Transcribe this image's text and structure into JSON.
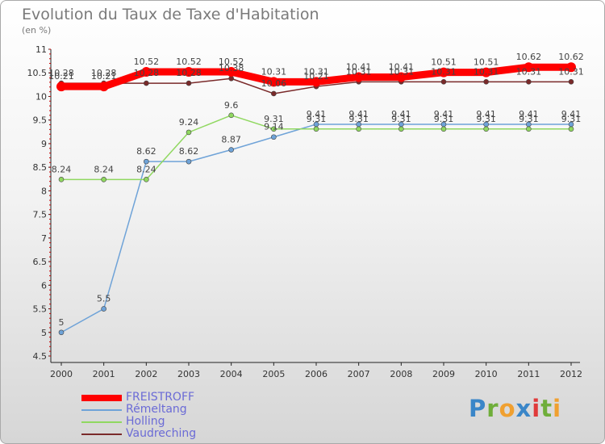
{
  "chart_data": {
    "type": "line",
    "title": "Evolution du Taux de Taxe d'Habitation",
    "subtitle": "(en %)",
    "x": [
      "2000",
      "2001",
      "2002",
      "2003",
      "2004",
      "2005",
      "2006",
      "2007",
      "2008",
      "2009",
      "2010",
      "2011",
      "2012"
    ],
    "ylim": [
      4.5,
      11
    ],
    "yticks": [
      "4.5",
      "5",
      "5.5",
      "6",
      "6.5",
      "7",
      "7.5",
      "8",
      "8.5",
      "9",
      "9.5",
      "10",
      "10.5",
      "11"
    ],
    "grid": false,
    "legend_position": "bottom-left",
    "series": [
      {
        "name": "FREISTROFF",
        "color": "#ff0000",
        "values": [
          10.21,
          10.21,
          10.52,
          10.52,
          10.52,
          10.31,
          10.31,
          10.41,
          10.41,
          10.51,
          10.51,
          10.62,
          10.62
        ],
        "labels": [
          "10.21",
          "10.21",
          "10.52",
          "10.52",
          "10.52",
          "10.31",
          "10.31",
          "10.41",
          "10.41",
          "10.51",
          "10.51",
          "10.62",
          "10.62"
        ]
      },
      {
        "name": "Rémeltang",
        "color": "#6fa3d8",
        "values": [
          5,
          5.5,
          8.62,
          8.62,
          8.87,
          9.14,
          9.41,
          9.41,
          9.41,
          9.41,
          9.41,
          9.41,
          9.41
        ],
        "labels": [
          "5",
          "5.5",
          "8.62",
          "8.62",
          "8.87",
          "9.14",
          "9.41",
          "9.41",
          "9.41",
          "9.41",
          "9.41",
          "9.41",
          "9.41"
        ]
      },
      {
        "name": "Holling",
        "color": "#90d860",
        "values": [
          8.24,
          8.24,
          8.24,
          9.24,
          9.6,
          9.31,
          9.31,
          9.31,
          9.31,
          9.31,
          9.31,
          9.31,
          9.31
        ],
        "labels": [
          "8.24",
          "8.24",
          "8.24",
          "9.24",
          "9.6",
          "9.31",
          "9.31",
          "9.31",
          "9.31",
          "9.31",
          "9.31",
          "9.31",
          "9.31"
        ]
      },
      {
        "name": "Vaudreching",
        "color": "#7a2a2a",
        "values": [
          10.28,
          10.28,
          10.28,
          10.28,
          10.38,
          10.06,
          10.21,
          10.31,
          10.31,
          10.31,
          10.31,
          10.31,
          10.31
        ],
        "labels": [
          "10.28",
          "10.28",
          "10.28",
          "10.28",
          "10.38",
          "10.06",
          "10.21",
          "10.31",
          "10.31",
          "10.31",
          "10.31",
          "10.31",
          "10.31"
        ]
      }
    ]
  },
  "logo": {
    "letters": [
      "P",
      "r",
      "o",
      "x",
      "i",
      "t",
      "i"
    ]
  }
}
